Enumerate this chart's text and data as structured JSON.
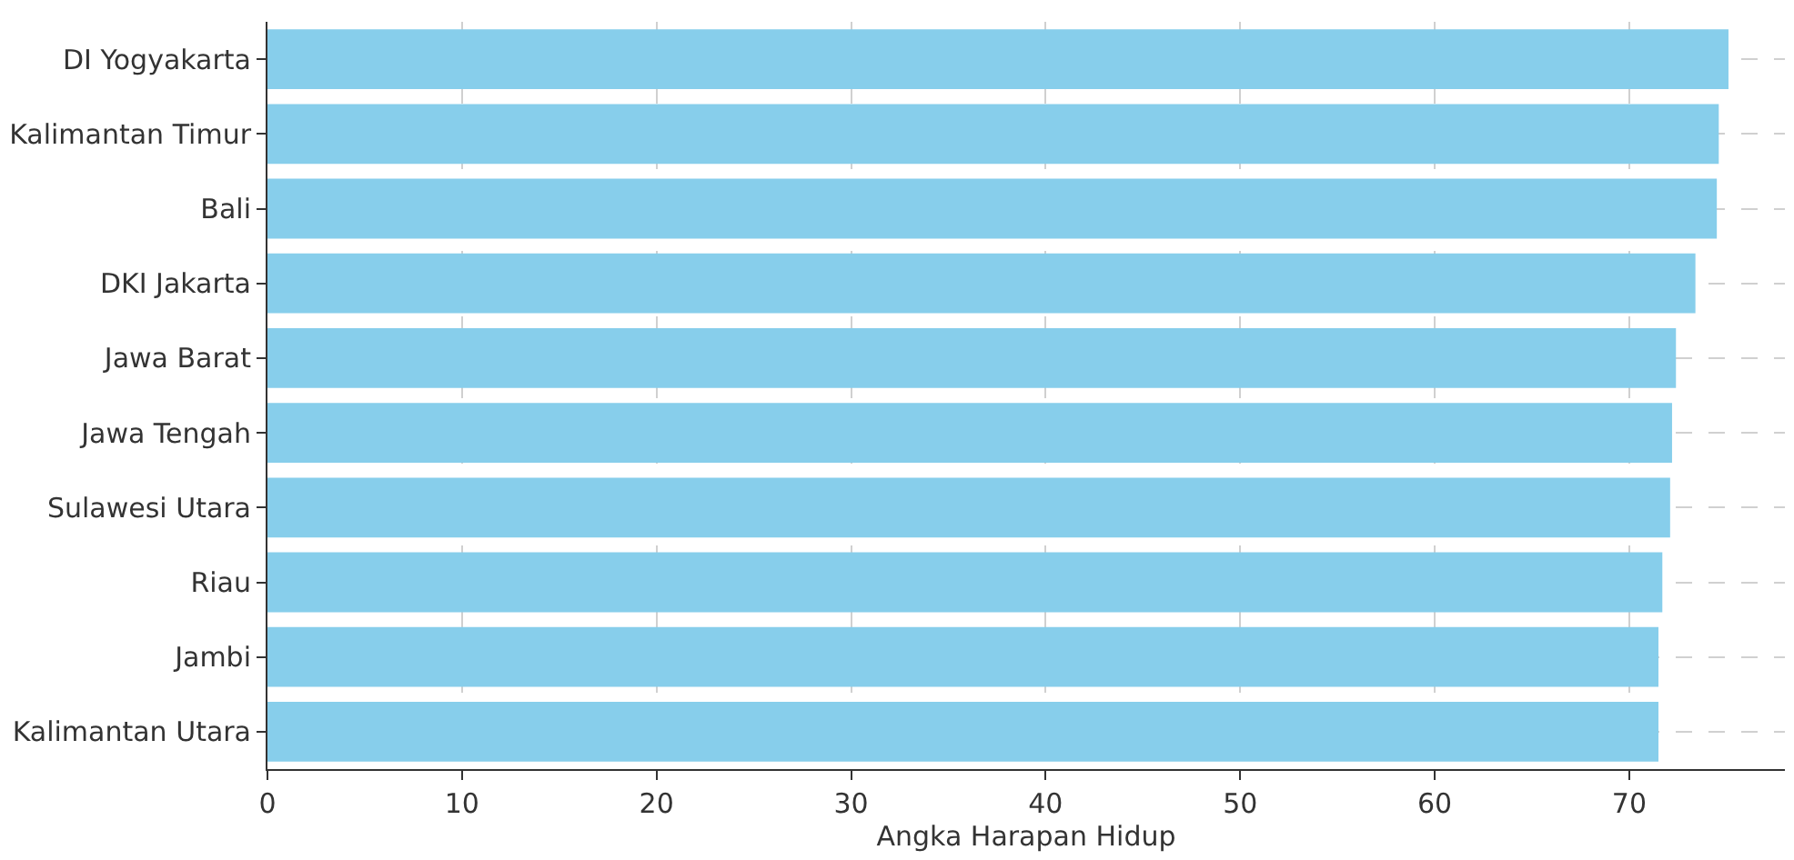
{
  "chart_data": {
    "type": "bar",
    "orientation": "horizontal",
    "xlabel": "Angka Harapan Hidup",
    "categories": [
      "DI Yogyakarta",
      "Kalimantan Timur",
      "Bali",
      "DKI Jakarta",
      "Jawa Barat",
      "Jawa Tengah",
      "Sulawesi Utara",
      "Riau",
      "Jambi",
      "Kalimantan Utara"
    ],
    "values": [
      75.1,
      74.6,
      74.5,
      73.4,
      72.4,
      72.2,
      72.1,
      71.7,
      71.5,
      71.5
    ],
    "color": "#87ceeb",
    "xlim": [
      0,
      78
    ],
    "xticks": [
      0,
      10,
      20,
      30,
      40,
      50,
      60,
      70
    ],
    "grid": true
  }
}
